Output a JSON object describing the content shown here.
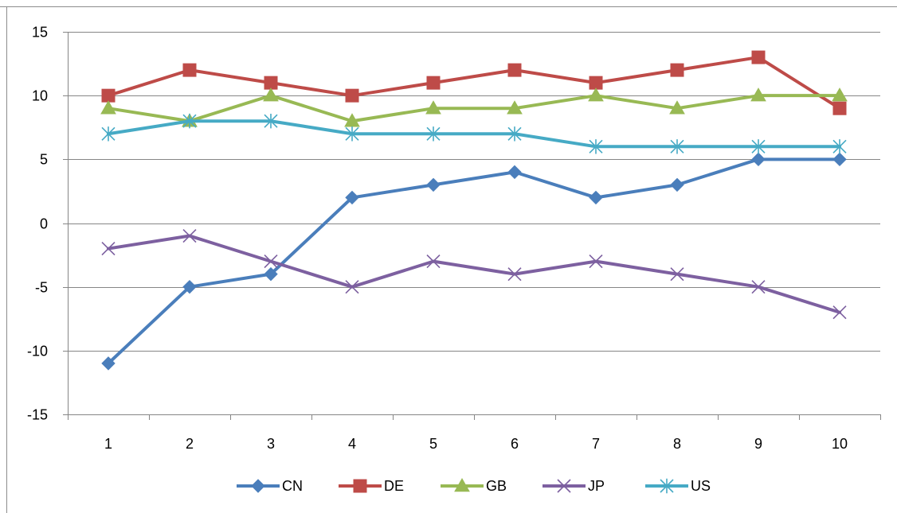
{
  "chart_data": {
    "type": "line",
    "title": "",
    "xlabel": "",
    "ylabel": "",
    "x": [
      1,
      2,
      3,
      4,
      5,
      6,
      7,
      8,
      9,
      10
    ],
    "x_tick_labels": [
      "1",
      "2",
      "3",
      "4",
      "5",
      "6",
      "7",
      "8",
      "9",
      "10"
    ],
    "ylim": [
      -15,
      15
    ],
    "y_ticks": [
      15,
      10,
      5,
      0,
      -5,
      -10,
      -15
    ],
    "y_tick_labels": [
      "15",
      "10",
      "5",
      "0",
      "-5",
      "-10",
      "-15"
    ],
    "grid": "horizontal",
    "legend": "bottom",
    "series": [
      {
        "name": "CN",
        "color": "#4a7ebb",
        "marker": "diamond",
        "values": [
          -11,
          -5,
          -4,
          2,
          3,
          4,
          2,
          3,
          5,
          5
        ]
      },
      {
        "name": "DE",
        "color": "#be4b48",
        "marker": "square",
        "values": [
          10,
          12,
          11,
          10,
          11,
          12,
          11,
          12,
          13,
          9
        ]
      },
      {
        "name": "GB",
        "color": "#98b954",
        "marker": "triangle",
        "values": [
          9,
          8,
          10,
          8,
          9,
          9,
          10,
          9,
          10,
          10
        ]
      },
      {
        "name": "JP",
        "color": "#7d60a0",
        "marker": "x",
        "values": [
          -2,
          -1,
          -3,
          -5,
          -3,
          -4,
          -3,
          -4,
          -5,
          -7
        ]
      },
      {
        "name": "US",
        "color": "#46aac5",
        "marker": "star",
        "values": [
          7,
          8,
          8,
          7,
          7,
          7,
          6,
          6,
          6,
          6
        ]
      }
    ]
  }
}
